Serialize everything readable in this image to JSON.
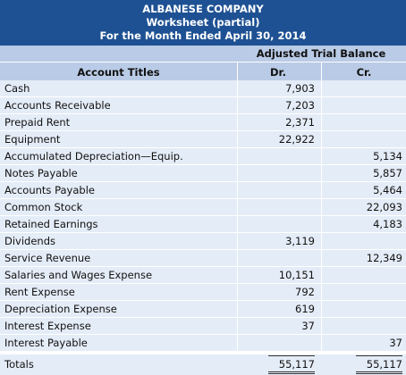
{
  "header": {
    "company": "ALBANESE COMPANY",
    "title": "Worksheet (partial)",
    "period": "For the Month Ended April 30, 2014"
  },
  "columns": {
    "group": "Adjusted Trial Balance",
    "account": "Account Titles",
    "debit": "Dr.",
    "credit": "Cr."
  },
  "rows": [
    {
      "account": "Cash",
      "dr": "7,903",
      "cr": ""
    },
    {
      "account": "Accounts Receivable",
      "dr": "7,203",
      "cr": ""
    },
    {
      "account": "Prepaid Rent",
      "dr": "2,371",
      "cr": ""
    },
    {
      "account": "Equipment",
      "dr": "22,922",
      "cr": ""
    },
    {
      "account": "Accumulated Depreciation—Equip.",
      "dr": "",
      "cr": "5,134"
    },
    {
      "account": "Notes Payable",
      "dr": "",
      "cr": "5,857"
    },
    {
      "account": "Accounts Payable",
      "dr": "",
      "cr": "5,464"
    },
    {
      "account": "Common Stock",
      "dr": "",
      "cr": "22,093"
    },
    {
      "account": "Retained Earnings",
      "dr": "",
      "cr": "4,183"
    },
    {
      "account": "Dividends",
      "dr": "3,119",
      "cr": ""
    },
    {
      "account": "Service Revenue",
      "dr": "",
      "cr": "12,349"
    },
    {
      "account": "Salaries and Wages Expense",
      "dr": "10,151",
      "cr": ""
    },
    {
      "account": "Rent Expense",
      "dr": "792",
      "cr": ""
    },
    {
      "account": "Depreciation Expense",
      "dr": "619",
      "cr": ""
    },
    {
      "account": "Interest Expense",
      "dr": "37",
      "cr": ""
    },
    {
      "account": "Interest Payable",
      "dr": "",
      "cr": "37"
    }
  ],
  "totals": {
    "label": "Totals",
    "dr": "55,117",
    "cr": "55,117"
  },
  "colors": {
    "banner": "#1e5193",
    "header": "#b9cbe6",
    "row": "#e4ecf7"
  }
}
